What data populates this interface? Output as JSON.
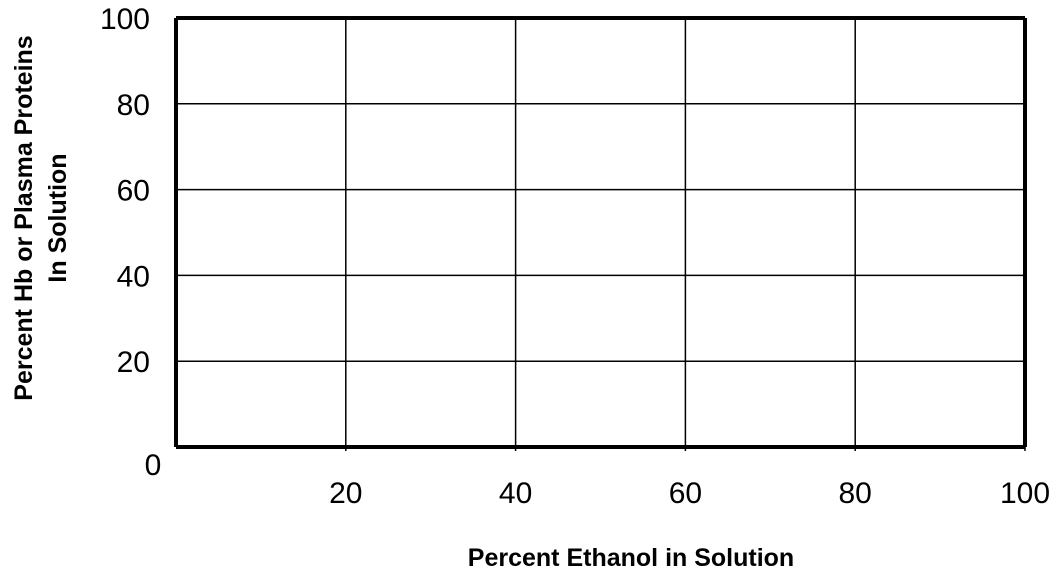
{
  "chart_data": {
    "type": "line",
    "title": "",
    "xlabel": "Percent Ethanol in Solution",
    "ylabel_lines": [
      "Percent Hb or Plasma Proteins",
      "In Solution"
    ],
    "xlim": [
      0,
      100
    ],
    "ylim": [
      0,
      100
    ],
    "x_ticks": [
      20,
      40,
      60,
      80,
      100
    ],
    "y_ticks": [
      100,
      80,
      60,
      40,
      20
    ],
    "origin_label": "0",
    "grid": true,
    "series": []
  }
}
